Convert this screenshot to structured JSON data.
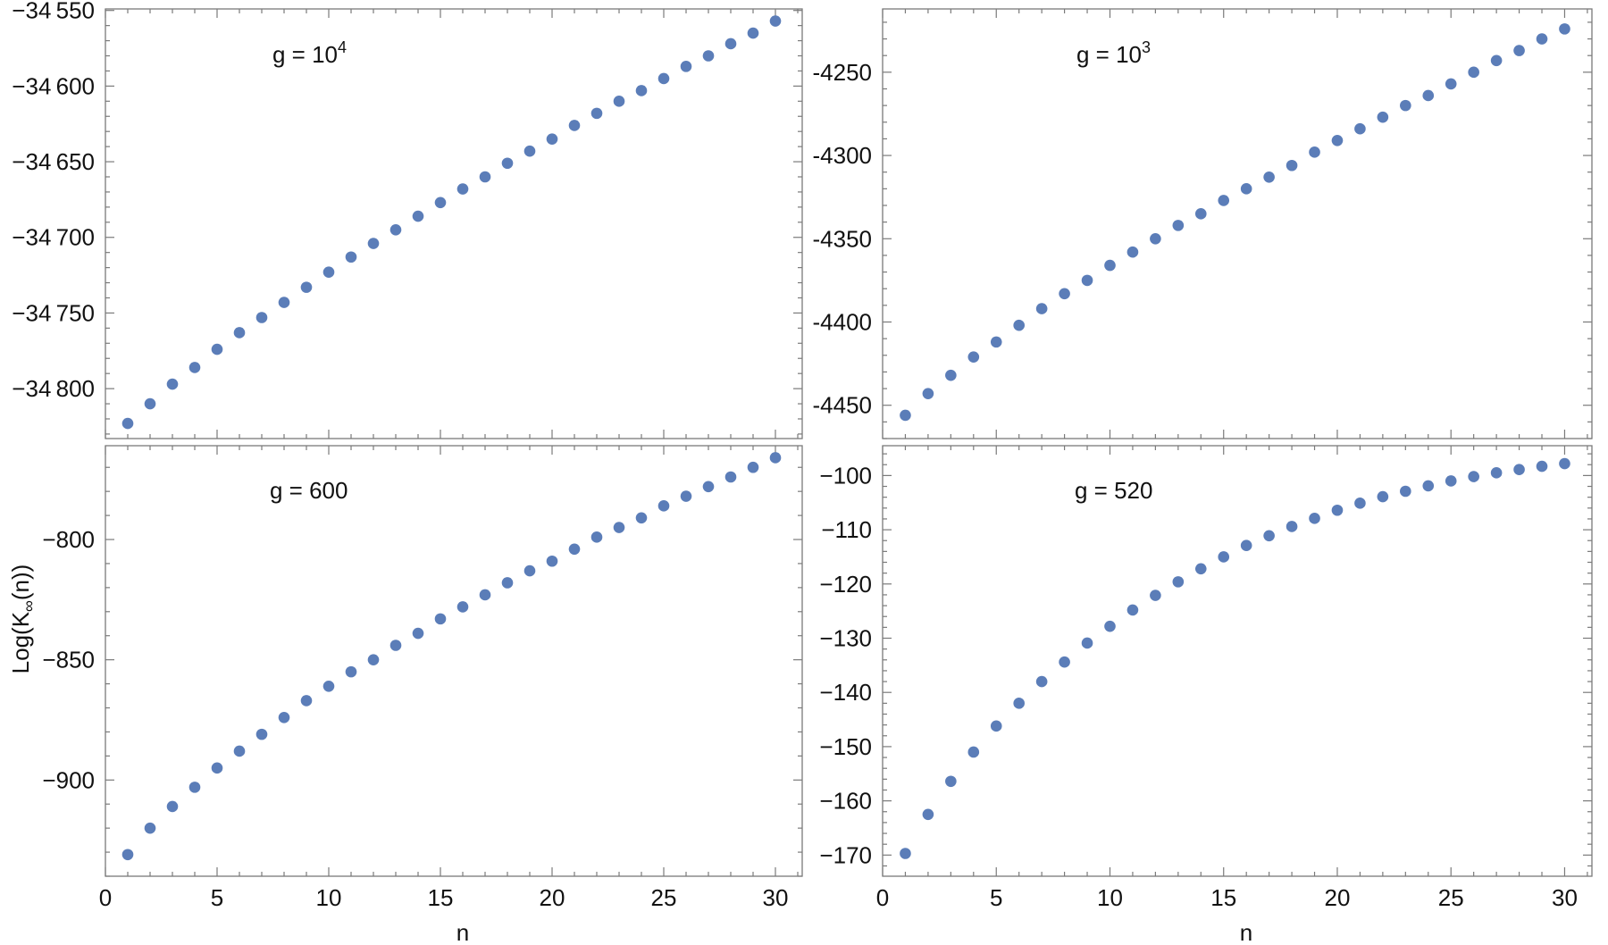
{
  "chart_data": [
    {
      "type": "scatter",
      "annotation": "g = 10",
      "annotation_exp": "4",
      "x": [
        1,
        2,
        3,
        4,
        5,
        6,
        7,
        8,
        9,
        10,
        11,
        12,
        13,
        14,
        15,
        16,
        17,
        18,
        19,
        20,
        21,
        22,
        23,
        24,
        25,
        26,
        27,
        28,
        29,
        30
      ],
      "y": [
        -34823,
        -34810,
        -34797,
        -34786,
        -34774,
        -34763,
        -34753,
        -34743,
        -34733,
        -34723,
        -34713,
        -34704,
        -34695,
        -34686,
        -34677,
        -34668,
        -34660,
        -34651,
        -34643,
        -34635,
        -34626,
        -34618,
        -34610,
        -34603,
        -34595,
        -34587,
        -34580,
        -34572,
        -34565,
        -34557
      ],
      "xlim": [
        0,
        31.2
      ],
      "ylim": [
        -34833,
        -34549
      ],
      "yticks": [
        -34550,
        -34600,
        -34650,
        -34700,
        -34750,
        -34800
      ],
      "ytick_labels": [
        "−34 550",
        "−34 600",
        "−34 650",
        "−34 700",
        "−34 750",
        "−34 800"
      ],
      "marker_color": "#5b7db8"
    },
    {
      "type": "scatter",
      "annotation": "g = 10",
      "annotation_exp": "3",
      "x": [
        1,
        2,
        3,
        4,
        5,
        6,
        7,
        8,
        9,
        10,
        11,
        12,
        13,
        14,
        15,
        16,
        17,
        18,
        19,
        20,
        21,
        22,
        23,
        24,
        25,
        26,
        27,
        28,
        29,
        30
      ],
      "y": [
        -4456,
        -4443,
        -4432,
        -4421,
        -4412,
        -4402,
        -4392,
        -4383,
        -4375,
        -4366,
        -4358,
        -4350,
        -4342,
        -4335,
        -4327,
        -4320,
        -4313,
        -4306,
        -4298,
        -4291,
        -4284,
        -4277,
        -4270,
        -4264,
        -4257,
        -4250,
        -4243,
        -4237,
        -4230,
        -4224
      ],
      "xlim": [
        0,
        31.2
      ],
      "ylim": [
        -4470,
        -4212
      ],
      "yticks": [
        -4250,
        -4300,
        -4350,
        -4400,
        -4450
      ],
      "ytick_labels": [
        "-4250",
        "-4300",
        "-4350",
        "-4400",
        "-4450"
      ],
      "marker_color": "#5b7db8"
    },
    {
      "type": "scatter",
      "annotation": "g = 600",
      "x": [
        1,
        2,
        3,
        4,
        5,
        6,
        7,
        8,
        9,
        10,
        11,
        12,
        13,
        14,
        15,
        16,
        17,
        18,
        19,
        20,
        21,
        22,
        23,
        24,
        25,
        26,
        27,
        28,
        29,
        30
      ],
      "y": [
        -931,
        -920,
        -911,
        -903,
        -895,
        -888,
        -881,
        -874,
        -867,
        -861,
        -855,
        -850,
        -844,
        -839,
        -833,
        -828,
        -823,
        -818,
        -813,
        -809,
        -804,
        -799,
        -795,
        -791,
        -786,
        -782,
        -778,
        -774,
        -770,
        -766
      ],
      "xlim": [
        0,
        31.2
      ],
      "ylim": [
        -940,
        -761
      ],
      "yticks": [
        -800,
        -850,
        -900
      ],
      "ytick_labels": [
        "−800",
        "−850",
        "−900"
      ],
      "xticks": [
        0,
        5,
        10,
        15,
        20,
        25,
        30
      ],
      "xtick_labels": [
        "0",
        "5",
        "10",
        "15",
        "20",
        "25",
        "30"
      ],
      "xlabel": "n",
      "ylabel": "Log(K",
      "ylabel_sub": "∞",
      "ylabel_end": "(n))",
      "marker_color": "#5b7db8"
    },
    {
      "type": "scatter",
      "annotation": "g = 520",
      "x": [
        1,
        2,
        3,
        4,
        5,
        6,
        7,
        8,
        9,
        10,
        11,
        12,
        13,
        14,
        15,
        16,
        17,
        18,
        19,
        20,
        21,
        22,
        23,
        24,
        25,
        26,
        27,
        28,
        29,
        30
      ],
      "y": [
        -169.7,
        -162.5,
        -156.4,
        -151.0,
        -146.2,
        -142.0,
        -138.0,
        -134.4,
        -130.9,
        -127.8,
        -124.8,
        -122.1,
        -119.6,
        -117.2,
        -115.0,
        -112.9,
        -111.1,
        -109.4,
        -107.9,
        -106.4,
        -105.1,
        -103.9,
        -102.9,
        -101.9,
        -101.0,
        -100.2,
        -99.5,
        -98.9,
        -98.3,
        -97.8
      ],
      "xlim": [
        0,
        31.2
      ],
      "ylim": [
        -173.9,
        -94.5
      ],
      "yticks": [
        -100,
        -110,
        -120,
        -130,
        -140,
        -150,
        -160,
        -170
      ],
      "ytick_labels": [
        "−100",
        "−110",
        "−120",
        "−130",
        "−140",
        "−150",
        "−160",
        "−170"
      ],
      "xticks": [
        0,
        5,
        10,
        15,
        20,
        25,
        30
      ],
      "xtick_labels": [
        "0",
        "5",
        "10",
        "15",
        "20",
        "25",
        "30"
      ],
      "xlabel": "n",
      "marker_color": "#5b7db8"
    }
  ]
}
